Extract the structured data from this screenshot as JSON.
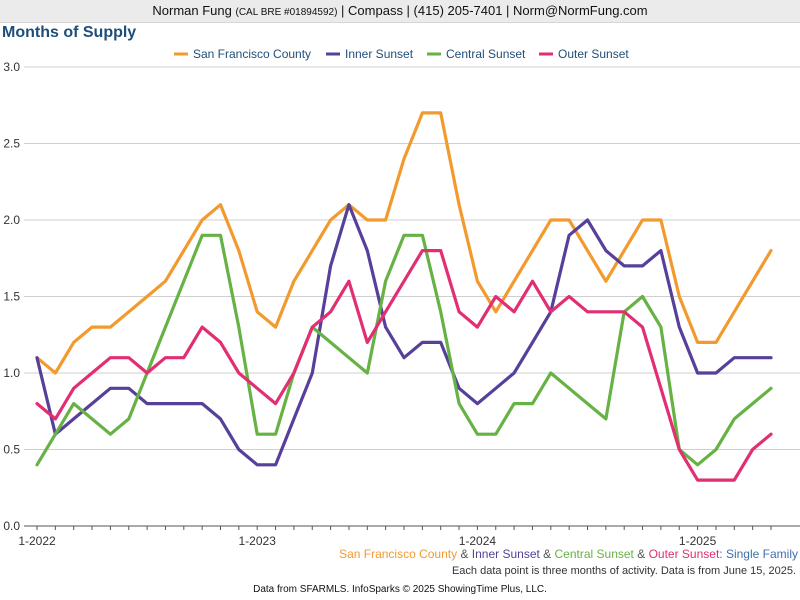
{
  "header": {
    "agent_name": "Norman Fung",
    "license": "(CAL BRE #01894592)",
    "details": "| Compass | (415) 205-7401 | Norm@NormFung.com"
  },
  "chart_data": {
    "type": "line",
    "title": "Months of Supply",
    "x": [
      "2022-01",
      "2022-02",
      "2022-03",
      "2022-04",
      "2022-05",
      "2022-06",
      "2022-07",
      "2022-08",
      "2022-09",
      "2022-10",
      "2022-11",
      "2022-12",
      "2023-01",
      "2023-02",
      "2023-03",
      "2023-04",
      "2023-05",
      "2023-06",
      "2023-07",
      "2023-08",
      "2023-09",
      "2023-10",
      "2023-11",
      "2023-12",
      "2024-01",
      "2024-02",
      "2024-03",
      "2024-04",
      "2024-05",
      "2024-06",
      "2024-07",
      "2024-08",
      "2024-09",
      "2024-10",
      "2024-11",
      "2024-12",
      "2025-01",
      "2025-02",
      "2025-03",
      "2025-04",
      "2025-05"
    ],
    "x_tick_labels": [
      "1-2022",
      "1-2023",
      "1-2024",
      "1-2025"
    ],
    "x_tick_index": [
      0,
      12,
      24,
      36
    ],
    "ylim": [
      0,
      3
    ],
    "y_ticks": [
      "0.0",
      "0.5",
      "1.0",
      "1.5",
      "2.0",
      "2.5",
      "3.0"
    ],
    "grid": true,
    "legend_position": "top",
    "series": [
      {
        "name": "San Francisco County",
        "color": "#F29A2E",
        "values": [
          1.1,
          1.0,
          1.2,
          1.3,
          1.3,
          1.4,
          1.5,
          1.6,
          1.8,
          2.0,
          2.1,
          1.8,
          1.4,
          1.3,
          1.6,
          1.8,
          2.0,
          2.1,
          2.0,
          2.0,
          2.4,
          2.7,
          2.7,
          2.1,
          1.6,
          1.4,
          1.6,
          1.8,
          2.0,
          2.0,
          1.8,
          1.6,
          1.8,
          2.0,
          2.0,
          1.5,
          1.2,
          1.2,
          1.4,
          1.6,
          1.8
        ]
      },
      {
        "name": "Inner Sunset",
        "color": "#56409A",
        "values": [
          1.1,
          0.6,
          0.7,
          0.8,
          0.9,
          0.9,
          0.8,
          0.8,
          0.8,
          0.8,
          0.7,
          0.5,
          0.4,
          0.4,
          0.7,
          1.0,
          1.7,
          2.1,
          1.8,
          1.3,
          1.1,
          1.2,
          1.2,
          0.9,
          0.8,
          0.9,
          1.0,
          1.2,
          1.4,
          1.9,
          2.0,
          1.8,
          1.7,
          1.7,
          1.8,
          1.3,
          1.0,
          1.0,
          1.1,
          1.1,
          1.1
        ]
      },
      {
        "name": "Central Sunset",
        "color": "#66B245",
        "values": [
          0.4,
          0.6,
          0.8,
          0.7,
          0.6,
          0.7,
          1.0,
          1.3,
          1.6,
          1.9,
          1.9,
          1.3,
          0.6,
          0.6,
          1.0,
          1.3,
          1.2,
          1.1,
          1.0,
          1.6,
          1.9,
          1.9,
          1.4,
          0.8,
          0.6,
          0.6,
          0.8,
          0.8,
          1.0,
          0.9,
          0.8,
          0.7,
          1.4,
          1.5,
          1.3,
          0.5,
          0.4,
          0.5,
          0.7,
          0.8,
          0.9
        ]
      },
      {
        "name": "Outer Sunset",
        "color": "#E22E73",
        "values": [
          0.8,
          0.7,
          0.9,
          1.0,
          1.1,
          1.1,
          1.0,
          1.1,
          1.1,
          1.3,
          1.2,
          1.0,
          0.9,
          0.8,
          1.0,
          1.3,
          1.4,
          1.6,
          1.2,
          1.4,
          1.6,
          1.8,
          1.8,
          1.4,
          1.3,
          1.5,
          1.4,
          1.6,
          1.4,
          1.5,
          1.4,
          1.4,
          1.4,
          1.3,
          0.9,
          0.5,
          0.3,
          0.3,
          0.3,
          0.5,
          0.6
        ]
      }
    ]
  },
  "footer": {
    "sep1": " & ",
    "sep2": " & ",
    "sep3": " & ",
    "suffix": ": Single Family",
    "note": "Each data point is three months of activity. Data is from June 15, 2025.",
    "source": "Data from SFARMLS. InfoSparks © 2025 ShowingTime Plus, LLC."
  },
  "colors": {
    "title": "#1f4e79",
    "suffix": "#3f6fb0",
    "separator": "#555555",
    "grid": "#cfcfcf",
    "axis": "#555555"
  }
}
